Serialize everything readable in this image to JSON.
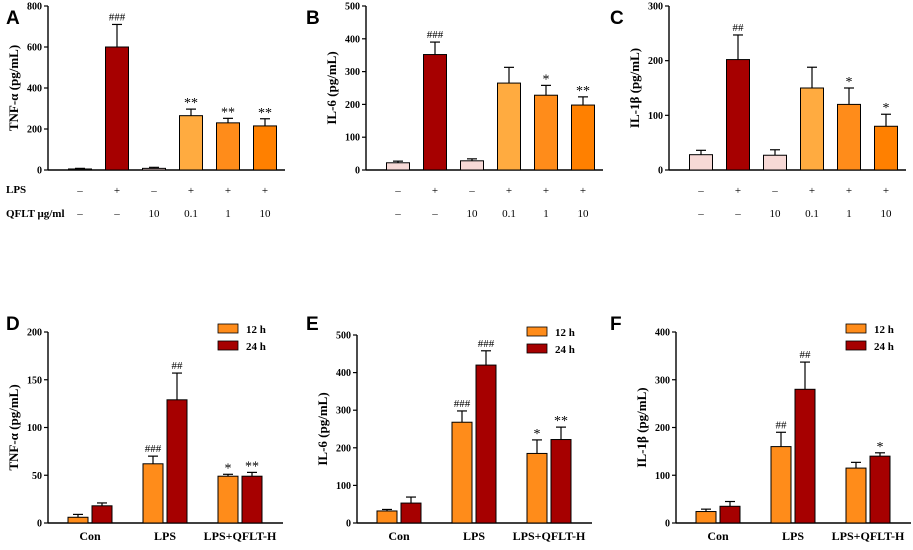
{
  "colors": {
    "control": "#f7d9d6",
    "lps": "#a60000",
    "qflt_only": "#f7d9d6",
    "qflt_low": "#ffab40",
    "qflt_mid": "#ff8c1a",
    "qflt_high": "#ff8000",
    "h12": "#ff8c1a",
    "h24": "#a60000"
  },
  "conditions": {
    "lps_label": "LPS",
    "qflt_label": "QFLT μg/ml",
    "lps_signs": [
      "–",
      "+",
      "–",
      "+",
      "+",
      "+"
    ],
    "qflt_signs": [
      "–",
      "–",
      "10",
      "0.1",
      "1",
      "10"
    ]
  },
  "chart_data": [
    {
      "id": "A",
      "letter": "A",
      "type": "bar",
      "ylabel": "TNF-α (pg/mL)",
      "ylim": [
        0,
        800
      ],
      "yticks": [
        "0",
        "200",
        "400",
        "600",
        "800"
      ],
      "values": [
        5,
        600,
        8,
        265,
        230,
        215
      ],
      "errors": [
        3,
        110,
        5,
        32,
        22,
        35
      ],
      "sig": [
        "",
        "###",
        "",
        "**",
        "**",
        "**"
      ]
    },
    {
      "id": "B",
      "letter": "B",
      "type": "bar",
      "ylabel": "IL-6 (pg/mL)",
      "ylim": [
        0,
        500
      ],
      "yticks": [
        "0",
        "100",
        "200",
        "300",
        "400",
        "500"
      ],
      "values": [
        22,
        352,
        28,
        265,
        228,
        198
      ],
      "errors": [
        5,
        38,
        6,
        48,
        30,
        25
      ],
      "sig": [
        "",
        "###",
        "",
        "",
        "*",
        "**"
      ]
    },
    {
      "id": "C",
      "letter": "C",
      "type": "bar",
      "ylabel": "IL-1β (pg/mL)",
      "ylim": [
        0,
        300
      ],
      "yticks": [
        "0",
        "100",
        "200",
        "300"
      ],
      "values": [
        28,
        202,
        27,
        150,
        120,
        80
      ],
      "errors": [
        8,
        45,
        10,
        38,
        30,
        22
      ],
      "sig": [
        "",
        "##",
        "",
        "",
        "*",
        "*"
      ]
    },
    {
      "id": "D",
      "letter": "D",
      "type": "bar",
      "ylabel": "TNF-α (pg/mL)",
      "ylim": [
        0,
        200
      ],
      "yticks": [
        "0",
        "50",
        "100",
        "150",
        "200"
      ],
      "categories": [
        "Con",
        "LPS",
        "LPS+QFLT-H"
      ],
      "legend": [
        "12 h",
        "24 h"
      ],
      "series": [
        {
          "name": "12 h",
          "values": [
            6,
            62,
            49
          ],
          "errors": [
            3,
            8,
            2
          ],
          "sig": [
            "",
            "###",
            "*"
          ]
        },
        {
          "name": "24 h",
          "values": [
            18,
            129,
            49
          ],
          "errors": [
            3,
            28,
            4
          ],
          "sig": [
            "",
            "##",
            "**"
          ]
        }
      ]
    },
    {
      "id": "E",
      "letter": "E",
      "type": "bar",
      "ylabel": "IL-6 (pg/mL)",
      "ylim": [
        0,
        500
      ],
      "yticks": [
        "0",
        "100",
        "200",
        "300",
        "400",
        "500"
      ],
      "categories": [
        "Con",
        "LPS",
        "LPS+QFLT-H"
      ],
      "legend": [
        "12 h",
        "24 h"
      ],
      "series": [
        {
          "name": "12 h",
          "values": [
            32,
            268,
            185
          ],
          "errors": [
            4,
            30,
            36
          ],
          "sig": [
            "",
            "###",
            "*"
          ]
        },
        {
          "name": "24 h",
          "values": [
            53,
            420,
            222
          ],
          "errors": [
            16,
            38,
            33
          ],
          "sig": [
            "",
            "###",
            "**"
          ]
        }
      ]
    },
    {
      "id": "F",
      "letter": "F",
      "type": "bar",
      "ylabel": "IL-1β (pg/mL)",
      "ylim": [
        0,
        400
      ],
      "yticks": [
        "0",
        "100",
        "200",
        "300",
        "400"
      ],
      "categories": [
        "Con",
        "LPS",
        "LPS+QFLT-H"
      ],
      "legend": [
        "12 h",
        "24 h"
      ],
      "series": [
        {
          "name": "12 h",
          "values": [
            24,
            160,
            115
          ],
          "errors": [
            5,
            30,
            12
          ],
          "sig": [
            "",
            "##",
            ""
          ]
        },
        {
          "name": "24 h",
          "values": [
            35,
            280,
            140
          ],
          "errors": [
            10,
            57,
            7
          ],
          "sig": [
            "",
            "##",
            "*"
          ]
        }
      ]
    }
  ]
}
